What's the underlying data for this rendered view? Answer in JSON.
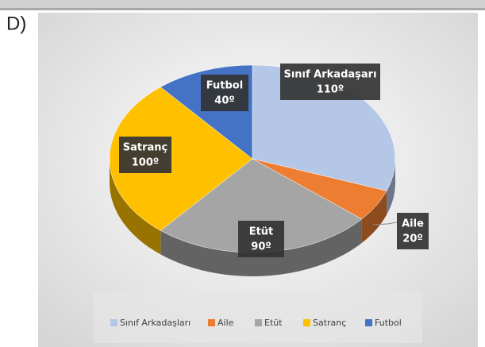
{
  "option_label": "D)",
  "chart_data": {
    "type": "pie",
    "categories": [
      "Sınıf Arkadaşları",
      "Aile",
      "Etüt",
      "Satranç",
      "Futbol"
    ],
    "label_names": [
      "Sınıf Arkadaşarı",
      "Aile",
      "Etüt",
      "Satranç",
      "Futbol"
    ],
    "values": [
      110,
      20,
      90,
      100,
      40
    ],
    "value_labels": [
      "110º",
      "20º",
      "90º",
      "100º",
      "40º"
    ],
    "colors": [
      "#b4c7e7",
      "#ed7d31",
      "#a5a5a5",
      "#ffc000",
      "#4472c4"
    ],
    "legend": "bottom"
  }
}
